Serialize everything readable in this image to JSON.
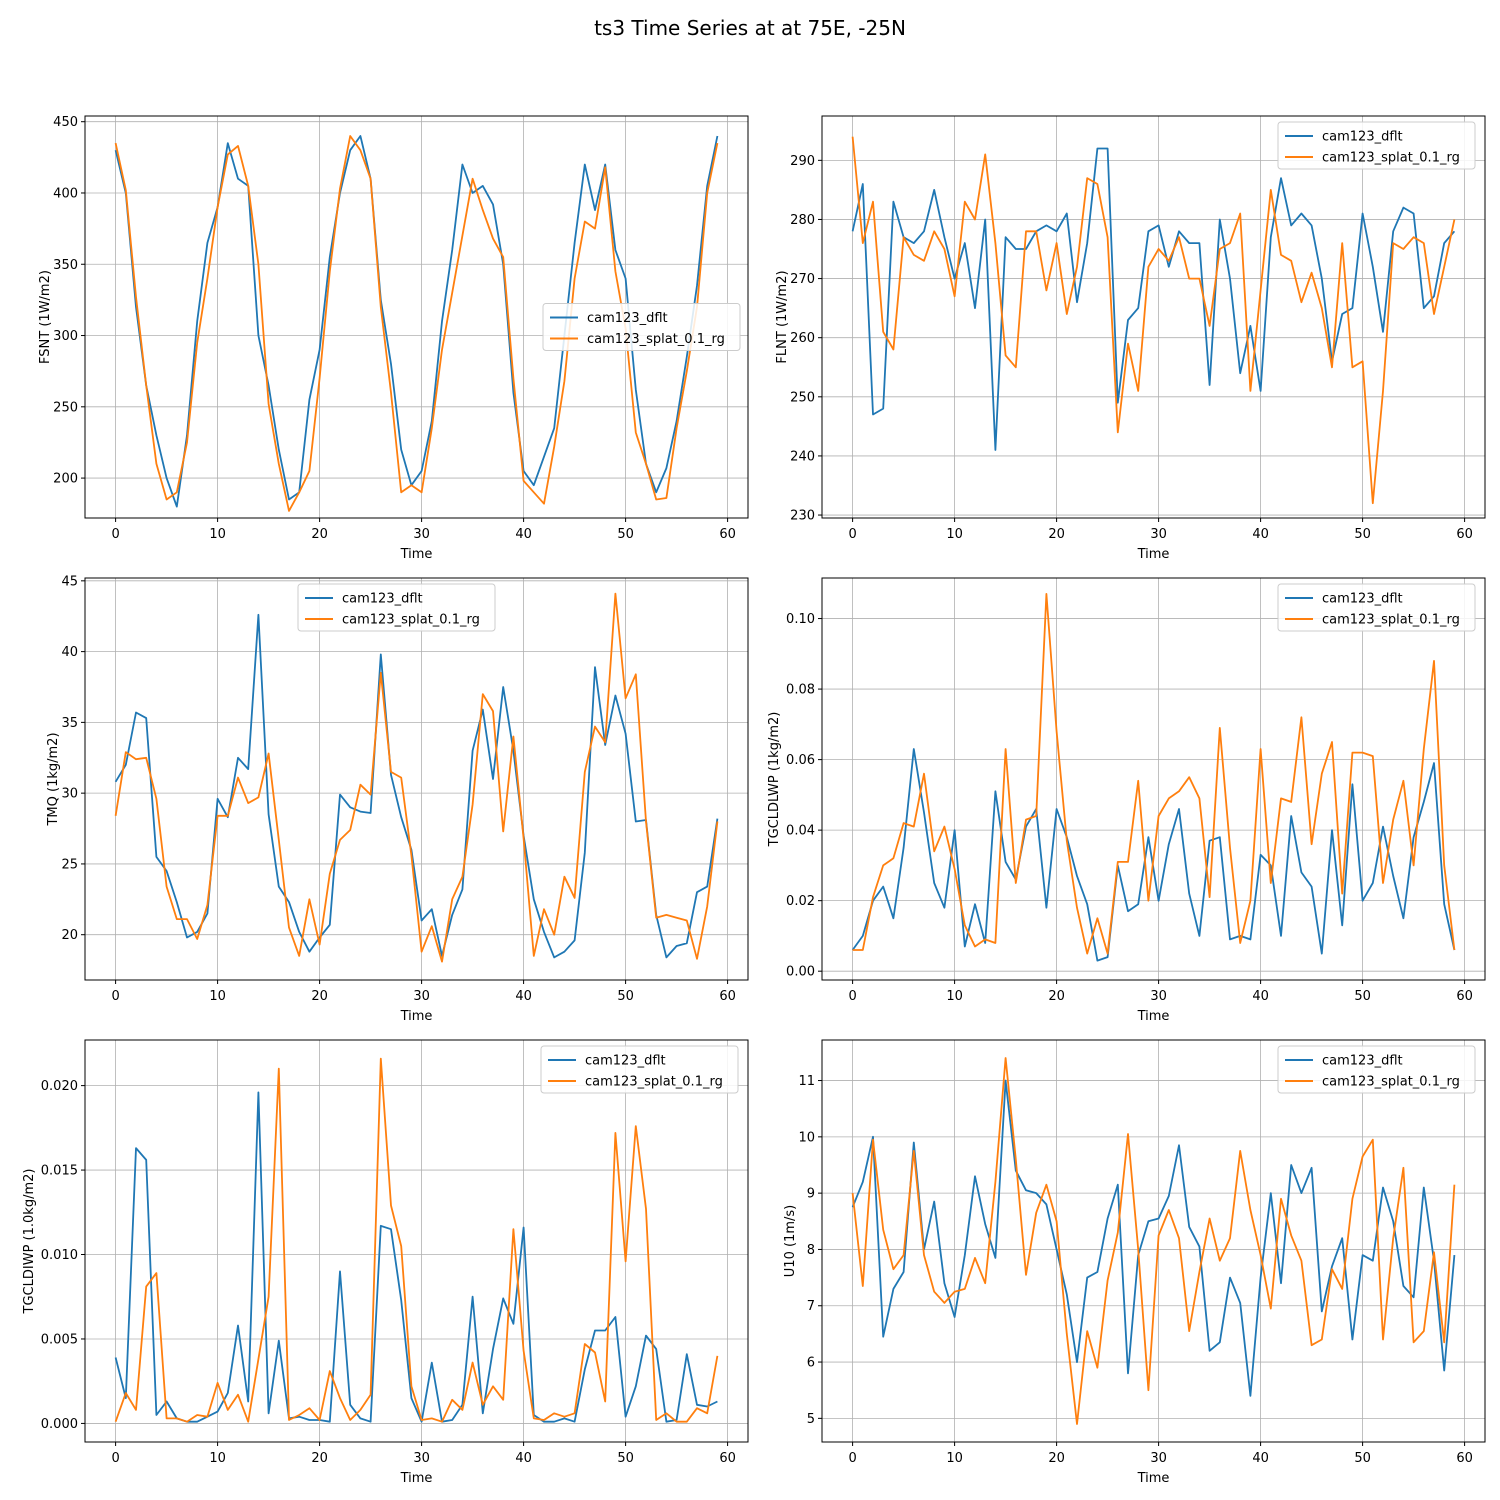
{
  "figure": {
    "title": "ts3 Time Series at at 75E, -25N"
  },
  "colors": {
    "series1": "#1f77b4",
    "series2": "#ff7f0e",
    "grid": "#b0b0b0"
  },
  "legend_labels": [
    "cam123_dflt",
    "cam123_splat_0.1_rg"
  ],
  "chart_data": [
    {
      "type": "line",
      "xlabel": "Time",
      "ylabel": "FSNT (1W/m2)",
      "xlim": [
        -3,
        62
      ],
      "ylim": [
        172,
        454
      ],
      "xticks": [
        0,
        10,
        20,
        30,
        40,
        50,
        60
      ],
      "yticks": [
        200,
        250,
        300,
        350,
        400,
        450
      ],
      "yticklabels": [
        "200",
        "250",
        "300",
        "350",
        "400",
        "450"
      ],
      "legend_position": "center-right",
      "grid": true,
      "series": [
        {
          "name": "cam123_dflt",
          "values": [
            430,
            400,
            320,
            265,
            230,
            200,
            180,
            230,
            310,
            365,
            390,
            435,
            410,
            405,
            300,
            265,
            220,
            185,
            190,
            255,
            290,
            355,
            400,
            430,
            440,
            410,
            325,
            280,
            220,
            195,
            205,
            240,
            310,
            360,
            420,
            400,
            405,
            392,
            350,
            260,
            205,
            195,
            215,
            235,
            300,
            365,
            420,
            388,
            420,
            360,
            340,
            262,
            210,
            190,
            207,
            240,
            285,
            335,
            405,
            440
          ]
        },
        {
          "name": "cam123_splat_0.1_rg",
          "values": [
            435,
            402,
            327,
            265,
            210,
            185,
            190,
            225,
            295,
            340,
            390,
            427,
            433,
            405,
            350,
            252,
            210,
            177,
            190,
            205,
            270,
            345,
            403,
            440,
            430,
            410,
            320,
            260,
            190,
            195,
            190,
            235,
            290,
            330,
            370,
            410,
            388,
            368,
            355,
            270,
            198,
            190,
            182,
            222,
            268,
            340,
            380,
            375,
            418,
            345,
            305,
            232,
            210,
            185,
            186,
            235,
            275,
            320,
            400,
            435
          ]
        }
      ]
    },
    {
      "type": "line",
      "xlabel": "Time",
      "ylabel": "FLNT (1W/m2)",
      "xlim": [
        -3,
        62
      ],
      "ylim": [
        229.5,
        297.5
      ],
      "xticks": [
        0,
        10,
        20,
        30,
        40,
        50,
        60
      ],
      "yticks": [
        230,
        240,
        250,
        260,
        270,
        280,
        290
      ],
      "yticklabels": [
        "230",
        "240",
        "250",
        "260",
        "270",
        "280",
        "290"
      ],
      "legend_position": "top-right",
      "grid": true,
      "series": [
        {
          "name": "cam123_dflt",
          "values": [
            278,
            286,
            247,
            248,
            283,
            277,
            276,
            278,
            285,
            277,
            270,
            276,
            265,
            280,
            241,
            277,
            275,
            275,
            278,
            279,
            278,
            281,
            266,
            276,
            292,
            292,
            249,
            263,
            265,
            278,
            279,
            272,
            278,
            276,
            276,
            252,
            280,
            270,
            254,
            262,
            251,
            277,
            287,
            279,
            281,
            279,
            270,
            256,
            264,
            265,
            281,
            272,
            261,
            278,
            282,
            281,
            265,
            267,
            276,
            278
          ]
        },
        {
          "name": "cam123_splat_0.1_rg",
          "values": [
            294,
            276,
            283,
            261,
            258,
            277,
            274,
            273,
            278,
            275,
            267,
            283,
            280,
            291,
            276,
            257,
            255,
            278,
            278,
            268,
            276,
            264,
            272,
            287,
            286,
            277,
            244,
            259,
            251,
            272,
            275,
            273,
            277,
            270,
            270,
            262,
            275,
            276,
            281,
            251,
            268,
            285,
            274,
            273,
            266,
            271,
            265,
            255,
            276,
            255,
            256,
            232,
            251,
            276,
            275,
            277,
            276,
            264,
            272,
            280
          ]
        }
      ]
    },
    {
      "type": "line",
      "xlabel": "Time",
      "ylabel": "TMQ (1kg/m2)",
      "xlim": [
        -3,
        62
      ],
      "ylim": [
        16.8,
        45.2
      ],
      "xticks": [
        0,
        10,
        20,
        30,
        40,
        50,
        60
      ],
      "yticks": [
        20,
        25,
        30,
        35,
        40,
        45
      ],
      "yticklabels": [
        "20",
        "25",
        "30",
        "35",
        "40",
        "45"
      ],
      "legend_position": "top-center",
      "grid": true,
      "series": [
        {
          "name": "cam123_dflt",
          "values": [
            30.8,
            32,
            35.7,
            35.3,
            25.5,
            24.5,
            22.3,
            19.8,
            20.2,
            21.5,
            29.6,
            28.3,
            32.5,
            31.7,
            42.6,
            28.5,
            23.4,
            22.3,
            20.2,
            18.8,
            19.8,
            20.7,
            29.9,
            29,
            28.7,
            28.6,
            39.8,
            31.3,
            28.3,
            26,
            21,
            21.8,
            18.5,
            21.4,
            23.2,
            33,
            35.9,
            31,
            37.5,
            33,
            27,
            22.5,
            20.2,
            18.4,
            18.8,
            19.6,
            25.8,
            38.9,
            33.4,
            36.9,
            34.2,
            28,
            28.1,
            21.4,
            18.4,
            19.2,
            19.4,
            23,
            23.4,
            28.2
          ]
        },
        {
          "name": "cam123_splat_0.1_rg",
          "values": [
            28.4,
            32.9,
            32.4,
            32.5,
            29.6,
            23.4,
            21.1,
            21.1,
            19.7,
            22.1,
            28.4,
            28.4,
            31.1,
            29.3,
            29.7,
            32.8,
            26.7,
            20.5,
            18.5,
            22.5,
            19.3,
            24.3,
            26.7,
            27.4,
            30.6,
            29.9,
            38.5,
            31.5,
            31.1,
            25.6,
            18.8,
            20.6,
            18.1,
            22.5,
            24.1,
            29.2,
            37,
            35.8,
            27.3,
            34,
            26.8,
            18.5,
            21.8,
            20,
            24.1,
            22.6,
            31.5,
            34.7,
            33.6,
            44.1,
            36.7,
            38.4,
            28,
            21.2,
            21.4,
            21.2,
            21,
            18.3,
            22,
            28
          ]
        }
      ]
    },
    {
      "type": "line",
      "xlabel": "Time",
      "ylabel": "TGCLDLWP (1kg/m2)",
      "xlim": [
        -3,
        62
      ],
      "ylim": [
        -0.0025,
        0.1115
      ],
      "xticks": [
        0,
        10,
        20,
        30,
        40,
        50,
        60
      ],
      "yticks": [
        0.0,
        0.02,
        0.04,
        0.06,
        0.08,
        0.1
      ],
      "yticklabels": [
        "0.00",
        "0.02",
        "0.04",
        "0.06",
        "0.08",
        "0.10"
      ],
      "legend_position": "top-right",
      "grid": true,
      "series": [
        {
          "name": "cam123_dflt",
          "values": [
            0.006,
            0.01,
            0.02,
            0.024,
            0.015,
            0.035,
            0.063,
            0.045,
            0.025,
            0.018,
            0.04,
            0.007,
            0.019,
            0.008,
            0.051,
            0.031,
            0.026,
            0.041,
            0.046,
            0.018,
            0.046,
            0.038,
            0.027,
            0.019,
            0.003,
            0.004,
            0.03,
            0.017,
            0.019,
            0.038,
            0.02,
            0.036,
            0.046,
            0.022,
            0.01,
            0.037,
            0.038,
            0.009,
            0.01,
            0.009,
            0.033,
            0.03,
            0.01,
            0.044,
            0.028,
            0.024,
            0.005,
            0.04,
            0.013,
            0.053,
            0.02,
            0.025,
            0.041,
            0.027,
            0.015,
            0.038,
            0.048,
            0.059,
            0.019,
            0.006
          ]
        },
        {
          "name": "cam123_splat_0.1_rg",
          "values": [
            0.006,
            0.006,
            0.021,
            0.03,
            0.032,
            0.042,
            0.041,
            0.056,
            0.034,
            0.041,
            0.029,
            0.013,
            0.007,
            0.009,
            0.008,
            0.063,
            0.025,
            0.043,
            0.044,
            0.107,
            0.068,
            0.037,
            0.018,
            0.005,
            0.015,
            0.005,
            0.031,
            0.031,
            0.054,
            0.02,
            0.044,
            0.049,
            0.051,
            0.055,
            0.049,
            0.021,
            0.069,
            0.035,
            0.008,
            0.02,
            0.063,
            0.025,
            0.049,
            0.048,
            0.072,
            0.036,
            0.056,
            0.065,
            0.022,
            0.062,
            0.062,
            0.061,
            0.025,
            0.043,
            0.054,
            0.03,
            0.063,
            0.088,
            0.03,
            0.006
          ]
        }
      ]
    },
    {
      "type": "line",
      "xlabel": "Time",
      "ylabel": "TGCLDIWP (1.0kg/m2)",
      "xlim": [
        -3,
        62
      ],
      "ylim": [
        -0.0011,
        0.0227
      ],
      "xticks": [
        0,
        10,
        20,
        30,
        40,
        50,
        60
      ],
      "yticks": [
        0.0,
        0.005,
        0.01,
        0.015,
        0.02
      ],
      "yticklabels": [
        "0.000",
        "0.005",
        "0.010",
        "0.015",
        "0.020"
      ],
      "legend_position": "top-right",
      "grid": true,
      "series": [
        {
          "name": "cam123_dflt",
          "values": [
            0.0039,
            0.0015,
            0.0163,
            0.0156,
            0.0005,
            0.0013,
            0.0003,
            0.0001,
            0.0001,
            0.0004,
            0.0007,
            0.0018,
            0.0058,
            0.0013,
            0.0196,
            0.0006,
            0.0049,
            0.0003,
            0.0004,
            0.0002,
            0.0002,
            0.0001,
            0.009,
            0.0011,
            0.0003,
            0.0001,
            0.0117,
            0.0115,
            0.0073,
            0.0015,
            0.0001,
            0.0036,
            0.0001,
            0.0002,
            0.0011,
            0.0075,
            0.0006,
            0.0044,
            0.0074,
            0.0059,
            0.0116,
            0.0005,
            0.0001,
            0.0001,
            0.0003,
            0.0001,
            0.0032,
            0.0055,
            0.0055,
            0.0063,
            0.0004,
            0.0022,
            0.0052,
            0.0044,
            0.0001,
            0.0002,
            0.0041,
            0.0011,
            0.001,
            0.0013
          ]
        },
        {
          "name": "cam123_splat_0.1_rg",
          "values": [
            0.0001,
            0.0018,
            0.0008,
            0.0081,
            0.0089,
            0.0003,
            0.0003,
            0.0001,
            0.0005,
            0.0004,
            0.0024,
            0.0008,
            0.0017,
            0.0001,
            0.0038,
            0.0075,
            0.021,
            0.0002,
            0.0005,
            0.0009,
            0.0002,
            0.0031,
            0.0015,
            0.0002,
            0.0008,
            0.0017,
            0.0216,
            0.0129,
            0.0105,
            0.0022,
            0.0002,
            0.0003,
            0.0001,
            0.0014,
            0.0008,
            0.0036,
            0.0011,
            0.0022,
            0.0014,
            0.0115,
            0.0043,
            0.0003,
            0.0002,
            0.0006,
            0.0004,
            0.0006,
            0.0047,
            0.0042,
            0.0013,
            0.0172,
            0.0096,
            0.0176,
            0.0127,
            0.0002,
            0.0006,
            0.0001,
            0.0001,
            0.0009,
            0.0006,
            0.004
          ]
        }
      ]
    },
    {
      "type": "line",
      "xlabel": "Time",
      "ylabel": "U10 (1m/s)",
      "xlim": [
        -3,
        62
      ],
      "ylim": [
        4.58,
        11.72
      ],
      "xticks": [
        0,
        10,
        20,
        30,
        40,
        50,
        60
      ],
      "yticks": [
        5,
        6,
        7,
        8,
        9,
        10,
        11
      ],
      "yticklabels": [
        "5",
        "6",
        "7",
        "8",
        "9",
        "10",
        "11"
      ],
      "legend_position": "top-right",
      "grid": true,
      "series": [
        {
          "name": "cam123_dflt",
          "values": [
            8.75,
            9.2,
            10,
            6.45,
            7.3,
            7.6,
            9.9,
            8.0,
            8.85,
            7.4,
            6.8,
            7.9,
            9.3,
            8.45,
            7.85,
            11,
            9.4,
            9.05,
            9.0,
            8.8,
            8.0,
            7.2,
            6.0,
            7.5,
            7.6,
            8.55,
            9.15,
            5.8,
            7.9,
            8.5,
            8.55,
            8.95,
            9.85,
            8.4,
            8.05,
            6.2,
            6.35,
            7.5,
            7.05,
            5.4,
            7.5,
            9.0,
            7.4,
            9.5,
            9.0,
            9.45,
            6.9,
            7.7,
            8.2,
            6.4,
            7.9,
            7.8,
            9.1,
            8.5,
            7.35,
            7.15,
            9.1,
            7.8,
            5.85,
            7.9
          ]
        },
        {
          "name": "cam123_splat_0.1_rg",
          "values": [
            9.0,
            7.35,
            9.95,
            8.35,
            7.65,
            7.9,
            9.75,
            7.9,
            7.25,
            7.05,
            7.25,
            7.3,
            7.85,
            7.4,
            9.2,
            11.4,
            9.6,
            7.55,
            8.65,
            9.15,
            8.5,
            6.5,
            4.9,
            6.55,
            5.9,
            7.45,
            8.3,
            10.05,
            8.0,
            5.5,
            8.25,
            8.7,
            8.2,
            6.55,
            7.6,
            8.55,
            7.8,
            8.2,
            9.75,
            8.7,
            7.9,
            6.95,
            8.9,
            8.25,
            7.8,
            6.3,
            6.4,
            7.65,
            7.3,
            8.9,
            9.65,
            9.95,
            6.4,
            8.2,
            9.45,
            6.35,
            6.55,
            7.95,
            6.35,
            9.15
          ]
        }
      ]
    }
  ]
}
